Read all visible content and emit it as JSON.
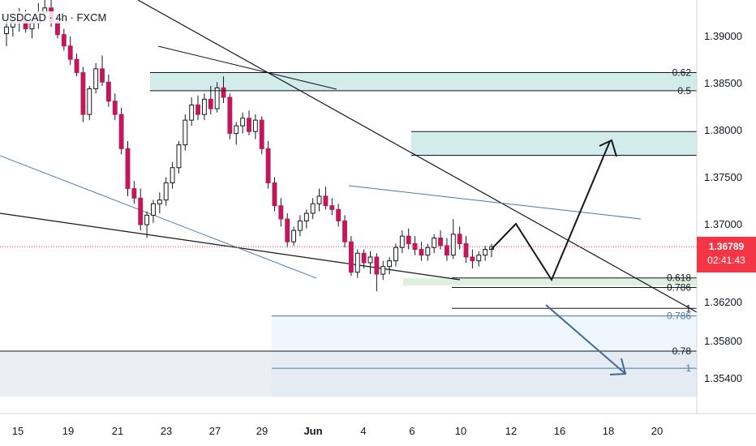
{
  "header": {
    "symbol": "USDCAD · 4h · FXCM"
  },
  "current_price": {
    "value": "1.36789",
    "countdown": "02:41:43",
    "color": "#f23645"
  },
  "colors": {
    "up": "#131722",
    "down": "#c2185b",
    "wick": "#131722",
    "zone_teal": "#b2dfdb",
    "zone_green": "#c8e6c9",
    "zone_grey": "#e0e3eb",
    "zone_blue": "#e3f2fd",
    "fib_blue": "#4a78a8"
  },
  "chart_data": {
    "type": "candlestick",
    "symbol": "USDCAD",
    "timeframe": "4h",
    "x_ticks": [
      "15",
      "19",
      "21",
      "23",
      "27",
      "29",
      "Jun",
      "4",
      "6",
      "10",
      "12",
      "16",
      "18",
      "20"
    ],
    "y_ticks": [
      "1.39000",
      "1.38500",
      "1.38000",
      "1.37500",
      "1.37000",
      "1.36200",
      "1.35800",
      "1.35400"
    ],
    "ylim": [
      1.3521,
      1.3942
    ],
    "last_price": 1.36789,
    "levels": [
      {
        "label": "0.62",
        "price": 1.3862
      },
      {
        "label": "0.5",
        "price": 1.3843
      },
      {
        "label": "0.618",
        "price": 1.3646
      },
      {
        "label": "0.786",
        "price": 1.3636
      },
      {
        "label": "1",
        "price": 1.3614
      },
      {
        "label": "0.786",
        "price": 1.3606
      },
      {
        "label": "0.78",
        "price": 1.3569
      },
      {
        "label": "1",
        "price": 1.3551
      }
    ],
    "candles_ohlc": [
      [
        1.3903,
        1.392,
        1.389,
        1.391
      ],
      [
        1.391,
        1.3925,
        1.39,
        1.3915
      ],
      [
        1.3915,
        1.393,
        1.3905,
        1.3918
      ],
      [
        1.3918,
        1.3928,
        1.3904,
        1.3908
      ],
      [
        1.3908,
        1.3922,
        1.3898,
        1.3914
      ],
      [
        1.3914,
        1.3935,
        1.3908,
        1.3925
      ],
      [
        1.3925,
        1.3942,
        1.3915,
        1.393
      ],
      [
        1.393,
        1.3941,
        1.391,
        1.3915
      ],
      [
        1.3915,
        1.3922,
        1.3898,
        1.3902
      ],
      [
        1.3902,
        1.3908,
        1.3885,
        1.389
      ],
      [
        1.389,
        1.39,
        1.387,
        1.3876
      ],
      [
        1.3876,
        1.3882,
        1.3858,
        1.3862
      ],
      [
        1.3862,
        1.3868,
        1.381,
        1.3818
      ],
      [
        1.3818,
        1.3848,
        1.3812,
        1.3845
      ],
      [
        1.3845,
        1.3872,
        1.384,
        1.3866
      ],
      [
        1.3866,
        1.388,
        1.3848,
        1.3852
      ],
      [
        1.3852,
        1.386,
        1.3826,
        1.3832
      ],
      [
        1.3832,
        1.384,
        1.3812,
        1.3818
      ],
      [
        1.3818,
        1.3825,
        1.3776,
        1.3782
      ],
      [
        1.3782,
        1.379,
        1.3732,
        1.374
      ],
      [
        1.374,
        1.3748,
        1.3724,
        1.373
      ],
      [
        1.373,
        1.374,
        1.3696,
        1.3702
      ],
      [
        1.3702,
        1.3716,
        1.3688,
        1.3712
      ],
      [
        1.3712,
        1.3728,
        1.3704,
        1.3724
      ],
      [
        1.3724,
        1.3736,
        1.3714,
        1.3728
      ],
      [
        1.3728,
        1.3752,
        1.3722,
        1.3746
      ],
      [
        1.3746,
        1.3768,
        1.374,
        1.3762
      ],
      [
        1.3762,
        1.379,
        1.3756,
        1.3786
      ],
      [
        1.3786,
        1.3818,
        1.378,
        1.3812
      ],
      [
        1.3812,
        1.3836,
        1.3806,
        1.3828
      ],
      [
        1.3828,
        1.3838,
        1.3812,
        1.3818
      ],
      [
        1.3818,
        1.384,
        1.3812,
        1.3834
      ],
      [
        1.3834,
        1.3848,
        1.3818,
        1.3824
      ],
      [
        1.3824,
        1.3852,
        1.382,
        1.3846
      ],
      [
        1.3846,
        1.3858,
        1.383,
        1.3836
      ],
      [
        1.3836,
        1.384,
        1.3792,
        1.3798
      ],
      [
        1.3798,
        1.381,
        1.3786,
        1.3806
      ],
      [
        1.3806,
        1.382,
        1.3798,
        1.3814
      ],
      [
        1.3814,
        1.3822,
        1.3796,
        1.38
      ],
      [
        1.38,
        1.3818,
        1.3792,
        1.3812
      ],
      [
        1.3812,
        1.3816,
        1.3776,
        1.3782
      ],
      [
        1.3782,
        1.379,
        1.374,
        1.3746
      ],
      [
        1.3746,
        1.3752,
        1.3716,
        1.3722
      ],
      [
        1.3722,
        1.373,
        1.37,
        1.3708
      ],
      [
        1.3708,
        1.3714,
        1.3678,
        1.3684
      ],
      [
        1.3684,
        1.37,
        1.368,
        1.3696
      ],
      [
        1.3696,
        1.3712,
        1.369,
        1.3706
      ],
      [
        1.3706,
        1.3718,
        1.3698,
        1.3714
      ],
      [
        1.3714,
        1.373,
        1.3708,
        1.3724
      ],
      [
        1.3724,
        1.374,
        1.3716,
        1.3732
      ],
      [
        1.3732,
        1.3742,
        1.3718,
        1.3722
      ],
      [
        1.3722,
        1.373,
        1.3712,
        1.3718
      ],
      [
        1.3718,
        1.3724,
        1.37,
        1.3706
      ],
      [
        1.3706,
        1.3712,
        1.3678,
        1.3684
      ],
      [
        1.3684,
        1.369,
        1.3648,
        1.3652
      ],
      [
        1.3652,
        1.3676,
        1.3646,
        1.3672
      ],
      [
        1.3672,
        1.3676,
        1.3656,
        1.3662
      ],
      [
        1.3662,
        1.3674,
        1.365,
        1.3668
      ],
      [
        1.3668,
        1.3672,
        1.3632,
        1.365
      ],
      [
        1.365,
        1.3664,
        1.3644,
        1.3658
      ],
      [
        1.3658,
        1.3668,
        1.365,
        1.3664
      ],
      [
        1.3664,
        1.3682,
        1.3658,
        1.3678
      ],
      [
        1.3678,
        1.3696,
        1.3672,
        1.369
      ],
      [
        1.369,
        1.3698,
        1.3676,
        1.3682
      ],
      [
        1.3682,
        1.369,
        1.367,
        1.3676
      ],
      [
        1.3676,
        1.3684,
        1.3664,
        1.367
      ],
      [
        1.367,
        1.3682,
        1.3664,
        1.3678
      ],
      [
        1.3678,
        1.3692,
        1.3672,
        1.3688
      ],
      [
        1.3688,
        1.3696,
        1.3676,
        1.368
      ],
      [
        1.368,
        1.3688,
        1.3664,
        1.367
      ],
      [
        1.367,
        1.3708,
        1.3666,
        1.3692
      ],
      [
        1.3692,
        1.37,
        1.3676,
        1.3682
      ],
      [
        1.3682,
        1.369,
        1.3662,
        1.3668
      ],
      [
        1.3668,
        1.3676,
        1.3656,
        1.3664
      ],
      [
        1.3664,
        1.3674,
        1.3658,
        1.367
      ],
      [
        1.367,
        1.368,
        1.3664,
        1.3676
      ],
      [
        1.3676,
        1.3682,
        1.3668,
        1.3679
      ]
    ]
  }
}
